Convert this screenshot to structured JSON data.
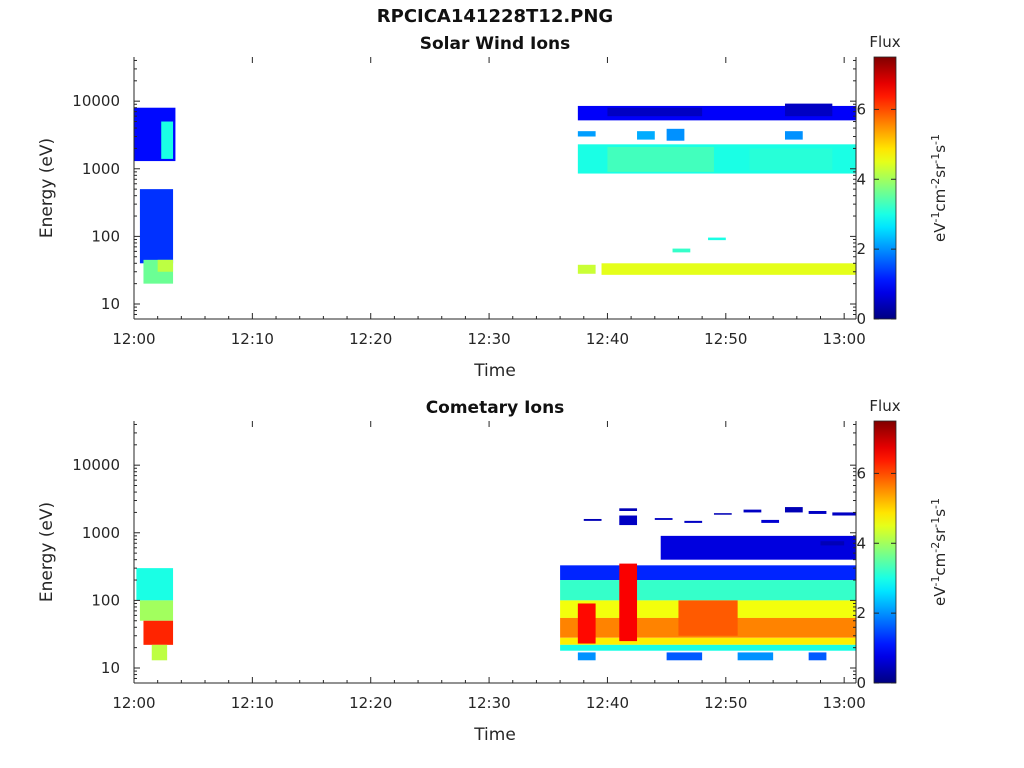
{
  "figure": {
    "title": "RPCICA141228T12.PNG"
  },
  "chart_data": [
    {
      "type": "heatmap",
      "title": "Solar Wind Ions",
      "xlabel": "Time",
      "ylabel": "Energy (eV)",
      "y_scale": "log",
      "xlim": [
        "12:00",
        "13:01"
      ],
      "ylim": [
        6,
        45000
      ],
      "x_ticks": [
        "12:00",
        "12:10",
        "12:20",
        "12:30",
        "12:40",
        "12:50",
        "13:00"
      ],
      "y_ticks": [
        "10",
        "100",
        "1000",
        "10000"
      ],
      "colorbar": {
        "title": "Flux",
        "label": "eV-1cm-2sr-1s-1",
        "ticks": [
          "0",
          "2",
          "4",
          "6"
        ],
        "range": [
          0,
          7.5
        ]
      },
      "blocks": [
        {
          "t0": "12:00.0",
          "t1": "12:03.5",
          "e0": 1300,
          "e1": 8000,
          "value": 1.0
        },
        {
          "t0": "12:02.3",
          "t1": "12:03.3",
          "e0": 1400,
          "e1": 5000,
          "value": 3.0
        },
        {
          "t0": "12:00.5",
          "t1": "12:03.3",
          "e0": 40,
          "e1": 500,
          "value": 1.3
        },
        {
          "t0": "12:00.8",
          "t1": "12:03.3",
          "e0": 20,
          "e1": 45,
          "value": 3.6
        },
        {
          "t0": "12:02.0",
          "t1": "12:03.3",
          "e0": 30,
          "e1": 45,
          "value": 4.2
        },
        {
          "t0": "12:37.5",
          "t1": "13:01.0",
          "e0": 5200,
          "e1": 8500,
          "value": 0.9
        },
        {
          "t0": "12:40.0",
          "t1": "12:48.0",
          "e0": 6000,
          "e1": 8000,
          "value": 0.5
        },
        {
          "t0": "12:55.0",
          "t1": "12:59.0",
          "e0": 6000,
          "e1": 9200,
          "value": 0.5
        },
        {
          "t0": "12:37.5",
          "t1": "12:39.0",
          "e0": 3000,
          "e1": 3600,
          "value": 2.1
        },
        {
          "t0": "12:42.5",
          "t1": "12:44.0",
          "e0": 2700,
          "e1": 3600,
          "value": 2.2
        },
        {
          "t0": "12:45.0",
          "t1": "12:46.5",
          "e0": 2600,
          "e1": 3900,
          "value": 2.0
        },
        {
          "t0": "12:55.0",
          "t1": "12:56.5",
          "e0": 2700,
          "e1": 3600,
          "value": 2.0
        },
        {
          "t0": "12:37.5",
          "t1": "13:01.0",
          "e0": 850,
          "e1": 2300,
          "value": 3.0
        },
        {
          "t0": "12:40.0",
          "t1": "12:49.0",
          "e0": 900,
          "e1": 2100,
          "value": 3.3
        },
        {
          "t0": "12:52.0",
          "t1": "12:59.0",
          "e0": 950,
          "e1": 2000,
          "value": 3.1
        },
        {
          "t0": "12:37.5",
          "t1": "12:39.0",
          "e0": 28,
          "e1": 38,
          "value": 4.3
        },
        {
          "t0": "12:39.5",
          "t1": "13:01.0",
          "e0": 27,
          "e1": 40,
          "value": 4.5
        },
        {
          "t0": "12:45.5",
          "t1": "12:47.0",
          "e0": 58,
          "e1": 66,
          "value": 3.2
        },
        {
          "t0": "12:48.5",
          "t1": "12:50.0",
          "e0": 88,
          "e1": 96,
          "value": 3.0
        }
      ]
    },
    {
      "type": "heatmap",
      "title": "Cometary Ions",
      "xlabel": "Time",
      "ylabel": "Energy (eV)",
      "y_scale": "log",
      "xlim": [
        "12:00",
        "13:01"
      ],
      "ylim": [
        6,
        45000
      ],
      "x_ticks": [
        "12:00",
        "12:10",
        "12:20",
        "12:30",
        "12:40",
        "12:50",
        "13:00"
      ],
      "y_ticks": [
        "10",
        "100",
        "1000",
        "10000"
      ],
      "colorbar": {
        "title": "Flux",
        "label": "eV-1cm-2sr-1s-1",
        "ticks": [
          "0",
          "2",
          "4",
          "6"
        ],
        "range": [
          0,
          7.5
        ]
      },
      "blocks": [
        {
          "t0": "12:00.2",
          "t1": "12:03.3",
          "e0": 100,
          "e1": 300,
          "value": 3.0
        },
        {
          "t0": "12:00.5",
          "t1": "12:03.3",
          "e0": 50,
          "e1": 100,
          "value": 4.0
        },
        {
          "t0": "12:00.8",
          "t1": "12:03.3",
          "e0": 22,
          "e1": 50,
          "value": 6.3
        },
        {
          "t0": "12:01.5",
          "t1": "12:02.8",
          "e0": 13,
          "e1": 22,
          "value": 4.2
        },
        {
          "t0": "12:36.0",
          "t1": "13:01.0",
          "e0": 200,
          "e1": 330,
          "value": 1.2
        },
        {
          "t0": "12:36.0",
          "t1": "13:01.0",
          "e0": 100,
          "e1": 200,
          "value": 3.2
        },
        {
          "t0": "12:36.0",
          "t1": "13:01.0",
          "e0": 55,
          "e1": 100,
          "value": 4.6
        },
        {
          "t0": "12:36.0",
          "t1": "13:01.0",
          "e0": 28,
          "e1": 55,
          "value": 5.6
        },
        {
          "t0": "12:36.0",
          "t1": "13:01.0",
          "e0": 22,
          "e1": 28,
          "value": 4.8
        },
        {
          "t0": "12:36.0",
          "t1": "13:01.0",
          "e0": 18,
          "e1": 22,
          "value": 3.0
        },
        {
          "t0": "12:37.5",
          "t1": "12:39.0",
          "e0": 23,
          "e1": 90,
          "value": 6.5
        },
        {
          "t0": "12:41.0",
          "t1": "12:42.5",
          "e0": 25,
          "e1": 350,
          "value": 6.6
        },
        {
          "t0": "12:41.0",
          "t1": "12:42.5",
          "e0": 1300,
          "e1": 1800,
          "value": 0.5
        },
        {
          "t0": "12:44.5",
          "t1": "13:01.0",
          "e0": 400,
          "e1": 900,
          "value": 0.7
        },
        {
          "t0": "12:46.0",
          "t1": "12:51.0",
          "e0": 30,
          "e1": 100,
          "value": 5.9
        },
        {
          "t0": "12:37.5",
          "t1": "12:39.0",
          "e0": 13,
          "e1": 17,
          "value": 2.0
        },
        {
          "t0": "12:45.0",
          "t1": "12:48.0",
          "e0": 13,
          "e1": 17,
          "value": 1.6
        },
        {
          "t0": "12:51.0",
          "t1": "12:54.0",
          "e0": 13,
          "e1": 17,
          "value": 2.0
        },
        {
          "t0": "12:57.0",
          "t1": "12:58.5",
          "e0": 13,
          "e1": 17,
          "value": 1.6
        },
        {
          "t0": "12:38.0",
          "t1": "12:39.5",
          "e0": 1500,
          "e1": 1600,
          "value": 0.4
        },
        {
          "t0": "12:41.0",
          "t1": "12:42.5",
          "e0": 2100,
          "e1": 2300,
          "value": 0.4
        },
        {
          "t0": "12:44.0",
          "t1": "12:45.5",
          "e0": 1550,
          "e1": 1650,
          "value": 0.5
        },
        {
          "t0": "12:46.5",
          "t1": "12:48.0",
          "e0": 1400,
          "e1": 1500,
          "value": 0.5
        },
        {
          "t0": "12:49.0",
          "t1": "12:50.5",
          "e0": 1850,
          "e1": 1950,
          "value": 0.4
        },
        {
          "t0": "12:51.5",
          "t1": "12:53.0",
          "e0": 2000,
          "e1": 2200,
          "value": 0.5
        },
        {
          "t0": "12:53.0",
          "t1": "12:54.5",
          "e0": 1400,
          "e1": 1550,
          "value": 0.6
        },
        {
          "t0": "12:55.0",
          "t1": "12:56.5",
          "e0": 2000,
          "e1": 2400,
          "value": 0.4
        },
        {
          "t0": "12:57.0",
          "t1": "12:58.5",
          "e0": 1900,
          "e1": 2100,
          "value": 0.5
        },
        {
          "t0": "12:59.0",
          "t1": "13:01.0",
          "e0": 1800,
          "e1": 2000,
          "value": 0.5
        },
        {
          "t0": "12:58.0",
          "t1": "13:00.0",
          "e0": 650,
          "e1": 750,
          "value": 0.4
        }
      ]
    }
  ]
}
